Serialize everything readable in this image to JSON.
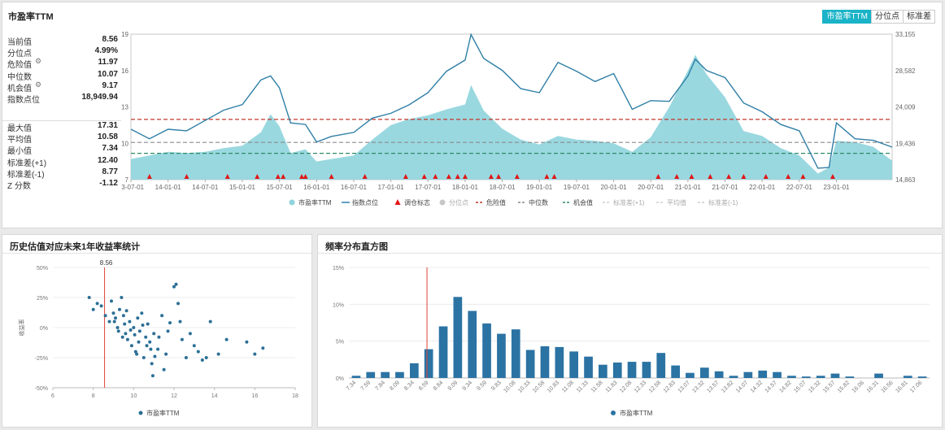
{
  "top": {
    "title": "市盈率TTM",
    "tabs": [
      "市盈率TTM",
      "分位点",
      "标准差"
    ],
    "stats": [
      {
        "label": "当前值",
        "value": "8.56"
      },
      {
        "label": "分位点",
        "value": "4.99%"
      },
      {
        "label": "危险值",
        "value": "11.97",
        "icon": "gear-icon"
      },
      {
        "label": "中位数",
        "value": "10.07"
      },
      {
        "label": "机会值",
        "value": "9.17",
        "icon": "gear-icon"
      },
      {
        "label": "指数点位",
        "value": "18,949.94"
      }
    ],
    "stats2": [
      {
        "label": "最大值",
        "value": "17.31"
      },
      {
        "label": "平均值",
        "value": "10.58"
      },
      {
        "label": "最小值",
        "value": "7.34"
      },
      {
        "label": "标准差(+1)",
        "value": "12.40"
      },
      {
        "label": "标准差(-1)",
        "value": "8.77"
      },
      {
        "label": "Z 分数",
        "value": "-1.12"
      }
    ]
  },
  "left": {
    "title": "历史估值对应未来1年收益率统计"
  },
  "right": {
    "title": "频率分布直方图"
  },
  "chart_data": [
    {
      "type": "area",
      "title": "市盈率TTM",
      "x_ticks": [
        "13-07-01",
        "14-01-01",
        "14-07-01",
        "15-01-01",
        "15-07-01",
        "16-01-01",
        "16-07-01",
        "17-01-01",
        "17-07-01",
        "18-01-01",
        "18-07-01",
        "19-01-01",
        "19-07-01",
        "20-01-01",
        "20-07-01",
        "21-01-01",
        "21-07-01",
        "22-01-01",
        "22-07-01",
        "23-01-01"
      ],
      "y_left_ticks": [
        "19",
        "16",
        "13",
        "10",
        "7"
      ],
      "ylim_left": [
        7,
        19
      ],
      "y_right_ticks": [
        "33,155",
        "28,582",
        "24,009",
        "19,436",
        "14,863"
      ],
      "ylim_right": [
        14863,
        33155
      ],
      "x_range": [
        2013.5,
        2023.75
      ],
      "pe_series": [
        [
          2013.5,
          8.7
        ],
        [
          2013.75,
          9.0
        ],
        [
          2014.0,
          9.3
        ],
        [
          2014.25,
          9.2
        ],
        [
          2014.5,
          9.3
        ],
        [
          2014.75,
          9.6
        ],
        [
          2015.0,
          9.8
        ],
        [
          2015.25,
          10.9
        ],
        [
          2015.38,
          12.4
        ],
        [
          2015.5,
          11.4
        ],
        [
          2015.65,
          9.2
        ],
        [
          2015.85,
          9.5
        ],
        [
          2016.0,
          8.5
        ],
        [
          2016.2,
          8.7
        ],
        [
          2016.5,
          9.0
        ],
        [
          2016.75,
          10.3
        ],
        [
          2017.0,
          11.5
        ],
        [
          2017.25,
          12.0
        ],
        [
          2017.5,
          12.3
        ],
        [
          2017.75,
          12.8
        ],
        [
          2018.0,
          13.2
        ],
        [
          2018.08,
          14.8
        ],
        [
          2018.25,
          12.7
        ],
        [
          2018.5,
          11.2
        ],
        [
          2018.75,
          10.3
        ],
        [
          2019.0,
          9.9
        ],
        [
          2019.25,
          10.6
        ],
        [
          2019.5,
          10.3
        ],
        [
          2019.75,
          10.2
        ],
        [
          2020.0,
          10.0
        ],
        [
          2020.25,
          9.3
        ],
        [
          2020.5,
          10.5
        ],
        [
          2020.75,
          13.0
        ],
        [
          2021.0,
          16.0
        ],
        [
          2021.1,
          17.3
        ],
        [
          2021.25,
          15.7
        ],
        [
          2021.5,
          13.8
        ],
        [
          2021.75,
          11.0
        ],
        [
          2022.0,
          10.6
        ],
        [
          2022.25,
          9.6
        ],
        [
          2022.5,
          9.0
        ],
        [
          2022.75,
          7.5
        ],
        [
          2022.9,
          8.0
        ],
        [
          2023.0,
          10.2
        ],
        [
          2023.25,
          10.1
        ],
        [
          2023.5,
          9.7
        ],
        [
          2023.75,
          8.56
        ]
      ],
      "index_series": [
        [
          2013.5,
          21200
        ],
        [
          2013.75,
          20000
        ],
        [
          2014.0,
          21200
        ],
        [
          2014.25,
          21000
        ],
        [
          2014.5,
          22300
        ],
        [
          2014.75,
          23600
        ],
        [
          2015.0,
          24300
        ],
        [
          2015.25,
          27400
        ],
        [
          2015.38,
          27900
        ],
        [
          2015.5,
          26400
        ],
        [
          2015.65,
          22000
        ],
        [
          2015.85,
          21800
        ],
        [
          2016.0,
          19600
        ],
        [
          2016.2,
          20300
        ],
        [
          2016.5,
          20800
        ],
        [
          2016.75,
          22600
        ],
        [
          2017.0,
          23200
        ],
        [
          2017.25,
          24300
        ],
        [
          2017.5,
          25800
        ],
        [
          2017.75,
          28500
        ],
        [
          2018.0,
          29900
        ],
        [
          2018.08,
          33100
        ],
        [
          2018.25,
          30100
        ],
        [
          2018.5,
          28600
        ],
        [
          2018.75,
          26300
        ],
        [
          2019.0,
          25800
        ],
        [
          2019.25,
          29600
        ],
        [
          2019.5,
          28500
        ],
        [
          2019.75,
          27200
        ],
        [
          2020.0,
          28200
        ],
        [
          2020.25,
          23700
        ],
        [
          2020.5,
          24800
        ],
        [
          2020.75,
          24700
        ],
        [
          2021.0,
          27900
        ],
        [
          2021.1,
          30000
        ],
        [
          2021.25,
          28600
        ],
        [
          2021.5,
          27700
        ],
        [
          2021.75,
          24500
        ],
        [
          2022.0,
          23400
        ],
        [
          2022.25,
          21800
        ],
        [
          2022.5,
          21000
        ],
        [
          2022.75,
          16300
        ],
        [
          2022.9,
          16400
        ],
        [
          2023.0,
          22000
        ],
        [
          2023.25,
          20000
        ],
        [
          2023.5,
          19800
        ],
        [
          2023.75,
          18950
        ]
      ],
      "danger_line": 11.97,
      "median_line": 10.07,
      "opportunity_line": 9.17,
      "adjust_marks": [
        2013.75,
        2014.25,
        2014.8,
        2015.2,
        2015.48,
        2015.55,
        2015.8,
        2015.85,
        2016.2,
        2016.65,
        2017.2,
        2017.45,
        2017.6,
        2017.78,
        2017.9,
        2018.0,
        2018.35,
        2018.45,
        2018.7,
        2019.1,
        2019.2,
        2020.6,
        2020.85,
        2021.05,
        2021.3,
        2021.55,
        2021.75,
        2022.05,
        2022.35,
        2022.55,
        2022.95
      ],
      "legend": [
        "市盈率TTM",
        "指数点位",
        "调仓标志",
        "分位点",
        "危险值",
        "中位数",
        "机会值",
        "标准差(+1)",
        "平均值",
        "标准差(-1)"
      ],
      "colors": {
        "area": "#8fd4dd",
        "index": "#2f7fa6",
        "danger": "#c0392b",
        "median": "#8a8a8a",
        "opportunity": "#2e8b67",
        "marker": "#e21515"
      }
    },
    {
      "type": "scatter",
      "title": "历史估值对应未来1年收益率统计",
      "ylabel": "收益率",
      "x_ticks": [
        "6",
        "8",
        "10",
        "12",
        "14",
        "16",
        "18"
      ],
      "xlim": [
        6,
        18
      ],
      "y_ticks": [
        "50%",
        "25%",
        "0%",
        "-25%",
        "-50%"
      ],
      "ylim": [
        -50,
        50
      ],
      "current_value": 8.56,
      "current_label": "8.56",
      "legend": [
        "市盈率TTM"
      ],
      "points": [
        [
          7.8,
          25
        ],
        [
          8.0,
          15
        ],
        [
          8.2,
          20
        ],
        [
          8.4,
          18
        ],
        [
          8.6,
          10
        ],
        [
          8.8,
          5
        ],
        [
          8.9,
          22
        ],
        [
          9.0,
          12
        ],
        [
          9.1,
          8
        ],
        [
          9.2,
          0
        ],
        [
          9.3,
          15
        ],
        [
          9.4,
          25
        ],
        [
          9.5,
          10
        ],
        [
          9.6,
          -5
        ],
        [
          9.7,
          -10
        ],
        [
          9.8,
          5
        ],
        [
          9.9,
          -15
        ],
        [
          10.0,
          0
        ],
        [
          10.1,
          -20
        ],
        [
          10.2,
          8
        ],
        [
          10.3,
          -3
        ],
        [
          10.4,
          12
        ],
        [
          10.5,
          -25
        ],
        [
          10.6,
          -8
        ],
        [
          10.7,
          3
        ],
        [
          10.8,
          -12
        ],
        [
          10.9,
          -30
        ],
        [
          11.0,
          -5
        ],
        [
          11.2,
          -18
        ],
        [
          11.4,
          10
        ],
        [
          11.6,
          -22
        ],
        [
          11.8,
          4
        ],
        [
          12.0,
          34
        ],
        [
          12.2,
          20
        ],
        [
          12.4,
          -10
        ],
        [
          12.6,
          -25
        ],
        [
          12.8,
          -5
        ],
        [
          13.0,
          -15
        ],
        [
          13.2,
          -20
        ],
        [
          13.4,
          -27
        ],
        [
          13.6,
          -25
        ],
        [
          13.8,
          5
        ],
        [
          14.2,
          -22
        ],
        [
          14.6,
          -10
        ],
        [
          15.6,
          -12
        ],
        [
          16.0,
          -22
        ],
        [
          16.4,
          -17
        ],
        [
          9.05,
          5
        ],
        [
          9.25,
          -3
        ],
        [
          9.45,
          -8
        ],
        [
          9.65,
          14
        ],
        [
          9.85,
          -2
        ],
        [
          10.05,
          -6
        ],
        [
          10.25,
          -12
        ],
        [
          10.45,
          2
        ],
        [
          10.65,
          -15
        ],
        [
          10.85,
          -18
        ],
        [
          11.05,
          -24
        ],
        [
          11.25,
          -8
        ],
        [
          11.5,
          -35
        ],
        [
          12.1,
          36
        ],
        [
          12.3,
          5
        ],
        [
          11.7,
          -3
        ],
        [
          10.95,
          -40
        ],
        [
          10.15,
          -22
        ],
        [
          9.55,
          3
        ]
      ]
    },
    {
      "type": "bar",
      "title": "频率分布直方图",
      "categories": [
        "7.34",
        "7.59",
        "7.84",
        "8.09",
        "8.34",
        "8.59",
        "8.84",
        "9.09",
        "9.34",
        "9.59",
        "9.83",
        "10.08",
        "10.33",
        "10.58",
        "10.83",
        "11.08",
        "11.33",
        "11.58",
        "11.83",
        "12.08",
        "12.33",
        "12.58",
        "12.83",
        "13.07",
        "13.32",
        "13.57",
        "13.82",
        "14.07",
        "14.32",
        "14.57",
        "14.82",
        "15.07",
        "15.32",
        "15.57",
        "15.82",
        "16.06",
        "16.31",
        "16.56",
        "16.81",
        "17.06"
      ],
      "values": [
        0.3,
        0.8,
        0.8,
        0.8,
        2.0,
        3.9,
        7.0,
        11.0,
        9.1,
        7.4,
        6.0,
        6.6,
        3.8,
        4.3,
        4.2,
        3.6,
        2.9,
        1.8,
        2.1,
        2.2,
        2.2,
        3.4,
        1.7,
        0.7,
        1.4,
        0.9,
        0.3,
        0.8,
        1.0,
        0.8,
        0.3,
        0.2,
        0.3,
        0.6,
        0.2,
        0.0,
        0.6,
        0.0,
        0.3,
        0.2
      ],
      "y_ticks": [
        "15%",
        "10%",
        "5%",
        "0%"
      ],
      "ylim": [
        0,
        15
      ],
      "current_value": 8.56,
      "legend": [
        "市盈率TTM"
      ],
      "color": "#2b73a3"
    }
  ]
}
